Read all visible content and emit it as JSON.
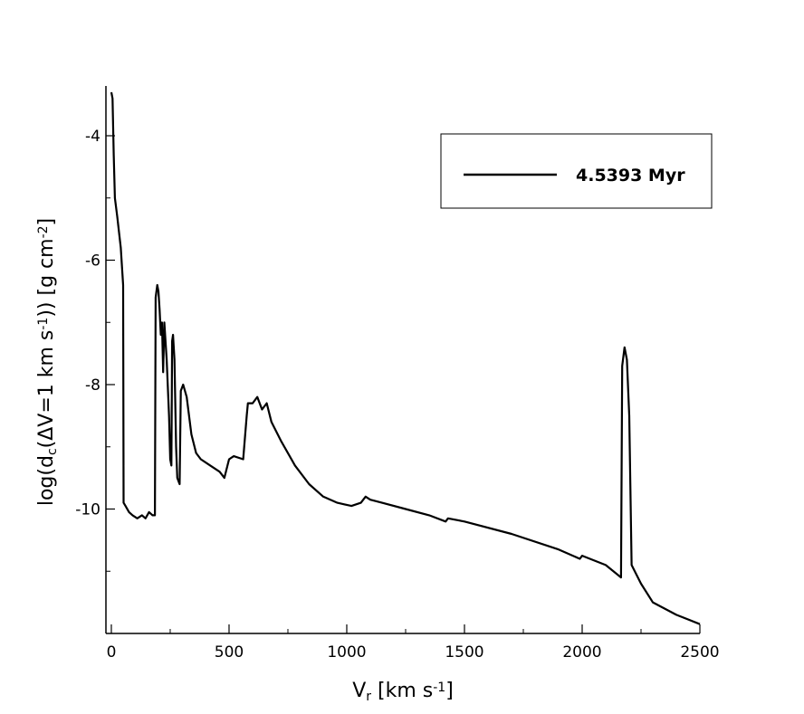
{
  "chart_data": {
    "type": "line",
    "xlabel": {
      "parts": [
        "V",
        "r",
        " [km s",
        "-1",
        "]"
      ],
      "shift": [
        "base",
        "sub",
        "base",
        "sup",
        "base"
      ]
    },
    "ylabel": {
      "parts": [
        "log(d",
        "c",
        "(ΔV=1 km s",
        "-1",
        ")) [g cm",
        "-2",
        "]"
      ],
      "shift": [
        "base",
        "sub",
        "base",
        "sup",
        "base",
        "sup",
        "base"
      ]
    },
    "xlim": [
      -23,
      2500
    ],
    "ylim": [
      -12,
      -3.2
    ],
    "xticks": [
      0,
      500,
      1000,
      1500,
      2000,
      2500
    ],
    "yticks": [
      -10,
      -8,
      -6,
      -4
    ],
    "xminorticks": [
      250,
      750,
      1250,
      1750,
      2250
    ],
    "yminorticks": [
      -11,
      -9,
      -7,
      -5
    ],
    "legend": "top-right",
    "series": [
      {
        "name": "4.5393 Myr",
        "color": "#000000",
        "x": [
          0,
          5,
          10,
          15,
          25,
          40,
          50,
          52,
          60,
          75,
          90,
          110,
          130,
          145,
          160,
          175,
          185,
          188,
          195,
          200,
          205,
          210,
          215,
          220,
          225,
          235,
          245,
          250,
          255,
          258,
          262,
          268,
          275,
          280,
          290,
          295,
          305,
          320,
          340,
          360,
          380,
          420,
          460,
          480,
          500,
          520,
          560,
          575,
          580,
          600,
          620,
          640,
          660,
          680,
          720,
          780,
          840,
          900,
          960,
          1020,
          1060,
          1080,
          1100,
          1150,
          1250,
          1350,
          1420,
          1430,
          1500,
          1700,
          1900,
          1990,
          2000,
          2100,
          2165,
          2170,
          2180,
          2190,
          2200,
          2210,
          2250,
          2300,
          2400,
          2500
        ],
        "values": [
          -3.3,
          -3.4,
          -4.3,
          -5.0,
          -5.3,
          -5.8,
          -6.4,
          -9.9,
          -9.95,
          -10.05,
          -10.1,
          -10.15,
          -10.1,
          -10.15,
          -10.05,
          -10.1,
          -10.1,
          -6.6,
          -6.4,
          -6.5,
          -6.8,
          -7.2,
          -7.0,
          -7.8,
          -7.0,
          -7.6,
          -8.5,
          -9.2,
          -9.3,
          -7.3,
          -7.2,
          -7.6,
          -9.0,
          -9.5,
          -9.6,
          -8.1,
          -8.0,
          -8.2,
          -8.8,
          -9.1,
          -9.2,
          -9.3,
          -9.4,
          -9.5,
          -9.2,
          -9.15,
          -9.2,
          -8.5,
          -8.3,
          -8.3,
          -8.2,
          -8.4,
          -8.3,
          -8.6,
          -8.9,
          -9.3,
          -9.6,
          -9.8,
          -9.9,
          -9.95,
          -9.9,
          -9.8,
          -9.85,
          -9.9,
          -10.0,
          -10.1,
          -10.2,
          -10.15,
          -10.2,
          -10.4,
          -10.65,
          -10.8,
          -10.75,
          -10.9,
          -11.1,
          -7.7,
          -7.4,
          -7.6,
          -8.5,
          -10.9,
          -11.2,
          -11.5,
          -11.7,
          -11.85
        ]
      }
    ]
  }
}
